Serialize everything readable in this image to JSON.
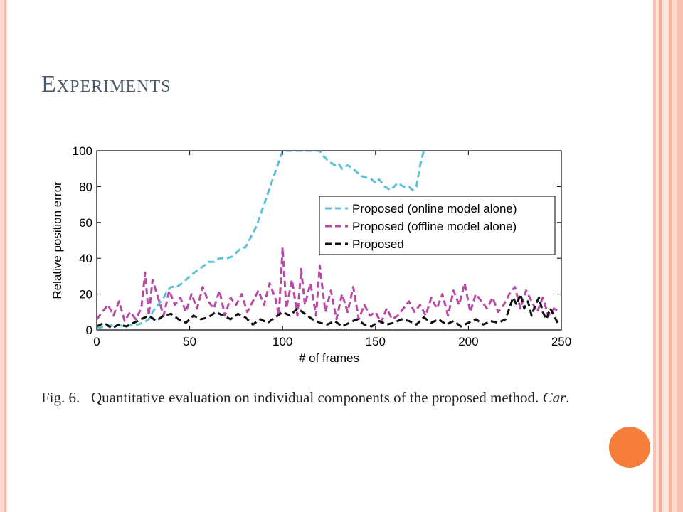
{
  "slide": {
    "title": "Experiments",
    "caption": {
      "label": "Fig. 6.",
      "text": "Quantitative evaluation on individual components of the proposed method.",
      "italic": "Car",
      "end": "."
    },
    "colors": {
      "title": "#4b5a6b",
      "accent_dot": "#f57f3a",
      "frame": "#f9c3b3"
    }
  },
  "chart_data": {
    "type": "line",
    "title": "",
    "xlabel": "# of frames",
    "ylabel": "Relative position error",
    "xlim": [
      0,
      250
    ],
    "ylim": [
      0,
      100
    ],
    "xticks": [
      0,
      50,
      100,
      150,
      200,
      250
    ],
    "yticks": [
      0,
      20,
      40,
      60,
      80,
      100
    ],
    "grid": false,
    "legend_position": "top-right",
    "series": [
      {
        "name": "Proposed (online model alone)",
        "color": "#5bc3d9",
        "style": "dashed",
        "x": [
          0,
          5,
          10,
          15,
          20,
          22,
          25,
          28,
          30,
          33,
          36,
          38,
          40,
          43,
          46,
          50,
          55,
          58,
          60,
          63,
          66,
          70,
          73,
          76,
          78,
          80,
          83,
          86,
          88,
          90,
          92,
          94,
          96,
          98,
          100,
          120,
          122,
          125,
          128,
          130,
          132,
          135,
          138,
          140,
          142,
          145,
          148,
          150,
          152,
          155,
          158,
          160,
          162,
          165,
          168,
          170,
          172,
          174,
          176
        ],
        "y": [
          1,
          2,
          3,
          2,
          3,
          3,
          4,
          6,
          10,
          14,
          18,
          22,
          24,
          24,
          26,
          30,
          34,
          36,
          38,
          38,
          40,
          40,
          41,
          44,
          46,
          46,
          52,
          58,
          64,
          70,
          76,
          82,
          88,
          94,
          100,
          100,
          97,
          94,
          92,
          93,
          90,
          92,
          90,
          88,
          86,
          85,
          84,
          82,
          84,
          80,
          78,
          80,
          82,
          80,
          80,
          78,
          80,
          92,
          100
        ]
      },
      {
        "name": "Proposed (offline model alone)",
        "color": "#b84ba5",
        "style": "dashed",
        "x": [
          0,
          3,
          6,
          9,
          12,
          15,
          18,
          21,
          24,
          26,
          28,
          30,
          33,
          36,
          39,
          42,
          45,
          48,
          51,
          54,
          57,
          60,
          63,
          66,
          69,
          72,
          75,
          78,
          81,
          84,
          87,
          90,
          93,
          96,
          98,
          100,
          102,
          105,
          108,
          110,
          112,
          115,
          118,
          120,
          123,
          126,
          129,
          132,
          135,
          138,
          141,
          144,
          147,
          150,
          153,
          156,
          159,
          162,
          165,
          168,
          171,
          174,
          177,
          180,
          183,
          186,
          189,
          192,
          195,
          198,
          201,
          204,
          207,
          210,
          213,
          216,
          219,
          222,
          225,
          228,
          231,
          234,
          237,
          240,
          243,
          246,
          249
        ],
        "y": [
          6,
          10,
          14,
          8,
          16,
          5,
          10,
          6,
          12,
          32,
          8,
          28,
          18,
          8,
          22,
          14,
          18,
          10,
          20,
          12,
          24,
          16,
          12,
          22,
          8,
          18,
          14,
          20,
          10,
          16,
          22,
          14,
          26,
          18,
          8,
          46,
          12,
          28,
          8,
          34,
          14,
          26,
          8,
          36,
          10,
          22,
          6,
          20,
          10,
          24,
          6,
          14,
          8,
          10,
          4,
          12,
          6,
          8,
          12,
          16,
          10,
          14,
          8,
          18,
          12,
          20,
          8,
          22,
          14,
          26,
          10,
          20,
          16,
          12,
          18,
          10,
          14,
          20,
          24,
          12,
          22,
          16,
          10,
          18,
          8,
          12,
          10
        ]
      },
      {
        "name": "Proposed",
        "color": "#111111",
        "style": "dashed",
        "x": [
          0,
          4,
          8,
          12,
          16,
          20,
          24,
          28,
          32,
          36,
          40,
          44,
          48,
          52,
          56,
          60,
          64,
          68,
          72,
          76,
          80,
          84,
          88,
          92,
          96,
          100,
          104,
          108,
          112,
          116,
          120,
          124,
          128,
          132,
          136,
          140,
          144,
          148,
          152,
          156,
          160,
          164,
          168,
          172,
          176,
          180,
          184,
          188,
          192,
          196,
          200,
          204,
          208,
          212,
          216,
          220,
          224,
          226,
          228,
          230,
          232,
          234,
          236,
          238,
          240,
          242,
          244,
          246,
          248
        ],
        "y": [
          2,
          4,
          1,
          3,
          2,
          4,
          6,
          8,
          5,
          8,
          9,
          6,
          4,
          8,
          6,
          7,
          10,
          8,
          6,
          9,
          7,
          3,
          6,
          4,
          7,
          10,
          8,
          12,
          9,
          6,
          4,
          3,
          5,
          2,
          4,
          6,
          3,
          2,
          5,
          3,
          4,
          6,
          5,
          3,
          7,
          4,
          6,
          3,
          5,
          2,
          4,
          6,
          3,
          5,
          4,
          6,
          18,
          14,
          20,
          12,
          16,
          8,
          14,
          18,
          10,
          6,
          12,
          8,
          4
        ]
      }
    ]
  }
}
